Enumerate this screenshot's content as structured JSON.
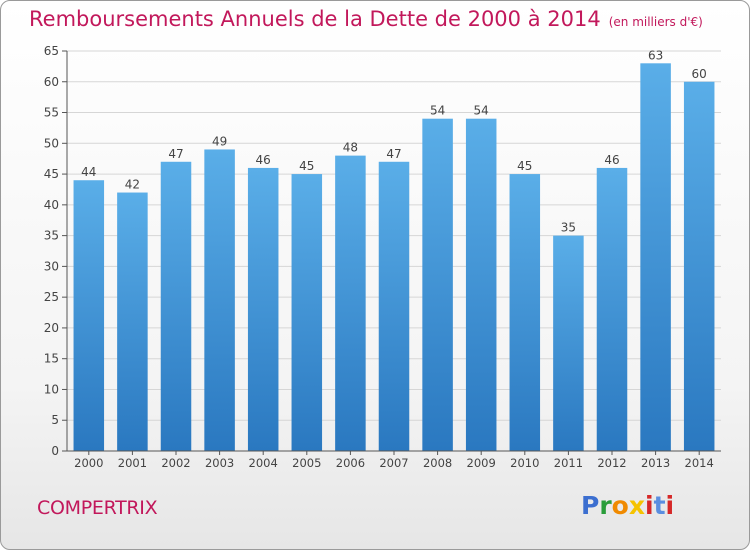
{
  "header": {
    "title": "Remboursements Annuels de la Dette de 2000 à 2014",
    "subtitle": "(en milliers d'€)"
  },
  "footer": {
    "commune": "COMPERTRIX",
    "logo_text": "Proxiti"
  },
  "colors": {
    "bar_light": "#5aaee8",
    "bar_dark": "#2a78c0",
    "title": "#c2185b",
    "grid": "#d6d6d6"
  },
  "chart_data": {
    "type": "bar",
    "categories": [
      "2000",
      "2001",
      "2002",
      "2003",
      "2004",
      "2005",
      "2006",
      "2007",
      "2008",
      "2009",
      "2010",
      "2011",
      "2012",
      "2013",
      "2014"
    ],
    "values": [
      44,
      42,
      47,
      49,
      46,
      45,
      48,
      47,
      54,
      54,
      45,
      35,
      46,
      63,
      60
    ],
    "ylim": [
      0,
      65
    ],
    "yticks": [
      0,
      5,
      10,
      15,
      20,
      25,
      30,
      35,
      40,
      45,
      50,
      55,
      60,
      65
    ],
    "grid": true,
    "legend": "none"
  }
}
